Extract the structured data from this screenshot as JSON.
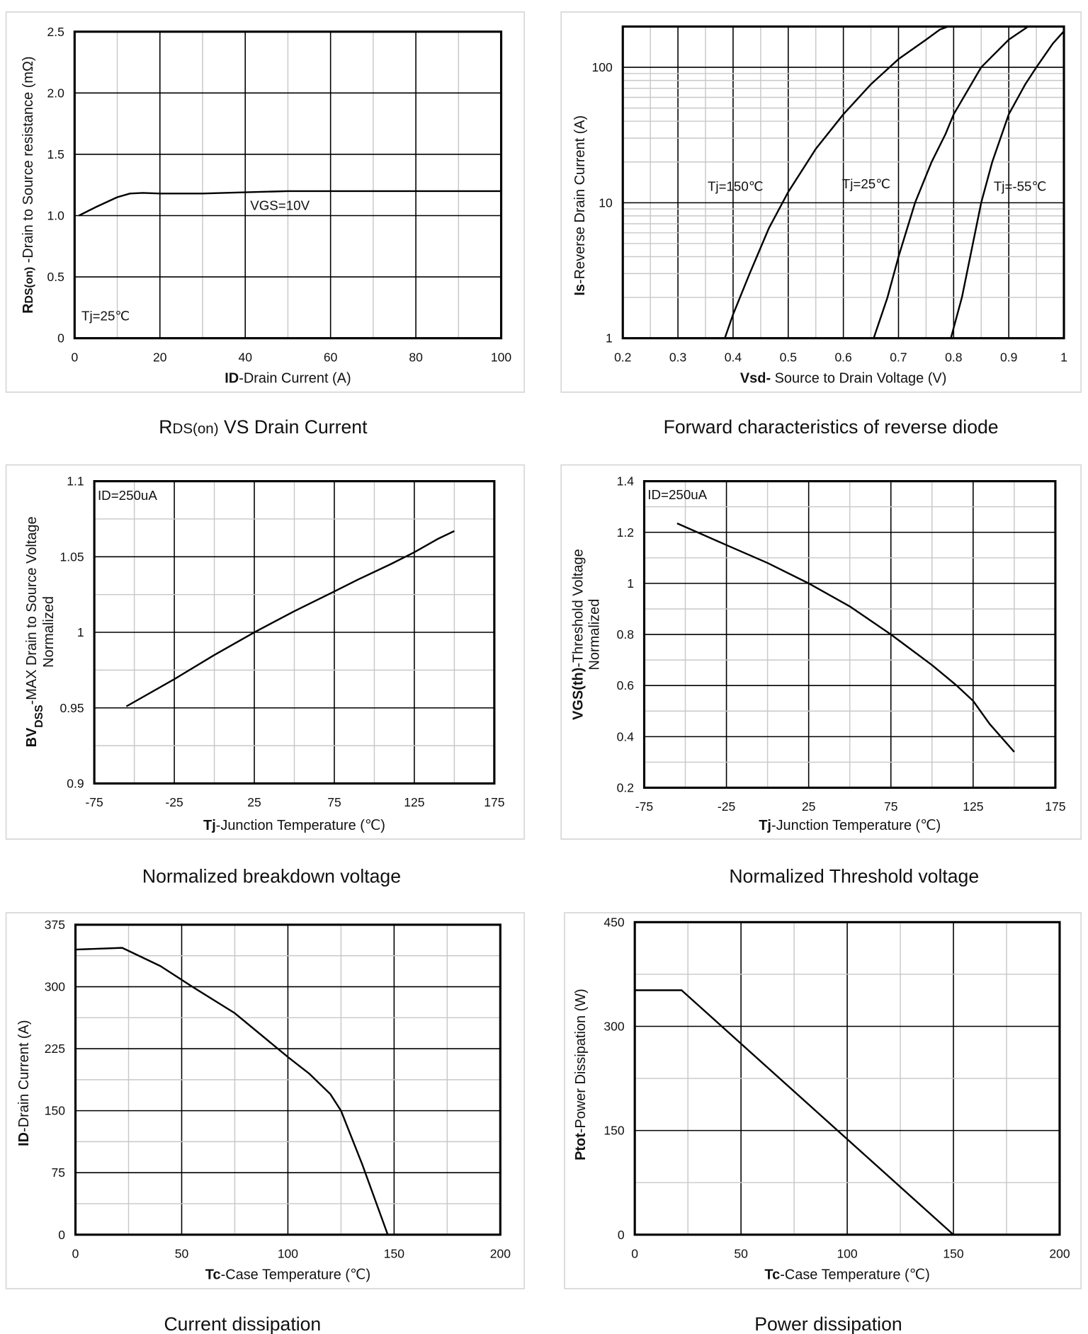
{
  "chart_data": [
    {
      "type": "line",
      "title": [
        {
          "t": "R"
        },
        {
          "t": "DS(on)",
          "s": "small"
        },
        {
          "t": " VS Drain Current"
        }
      ],
      "xlabel": [
        {
          "t": "ID",
          "s": "b"
        },
        {
          "t": "-Drain Current  (A)"
        }
      ],
      "ylabel": [
        [
          {
            "t": "R",
            "s": "b"
          },
          {
            "t": "DS(on)",
            "s": "bsmall"
          },
          {
            "t": " -Drain to Source resistance  (mΩ)"
          }
        ]
      ],
      "xscale": "linear",
      "xlim": [
        0,
        100
      ],
      "xmajor": 20,
      "xminor": 10,
      "yscale": "linear",
      "ylim": [
        0,
        2.5
      ],
      "ymajor": 0.5,
      "yminor": 0.5,
      "xticks": [
        "0",
        "20",
        "40",
        "60",
        "80",
        "100"
      ],
      "yticks": [
        "0",
        "0.5",
        "1.0",
        "1.5",
        "2.0",
        "2.5"
      ],
      "annotations": [
        "VGS=10V",
        "Tj=25℃"
      ],
      "grid": true,
      "series": [
        {
          "name": "VGS=10V",
          "x": [
            1,
            5,
            10,
            13,
            16,
            20,
            30,
            40,
            50,
            60,
            80,
            100
          ],
          "y": [
            1.0,
            1.07,
            1.15,
            1.18,
            1.185,
            1.18,
            1.18,
            1.19,
            1.2,
            1.2,
            1.2,
            1.2
          ]
        }
      ]
    },
    {
      "type": "line",
      "title": [
        {
          "t": "Forward characteristics of reverse diode"
        }
      ],
      "xlabel": [
        {
          "t": "Vsd-",
          "s": "b"
        },
        {
          "t": " Source to Drain Voltage (V)"
        }
      ],
      "ylabel": [
        [
          {
            "t": "Is",
            "s": "b"
          },
          {
            "t": "-Reverse  Drain Current  (A)"
          }
        ]
      ],
      "xscale": "linear",
      "xlim": [
        0.2,
        1.0
      ],
      "xmajor": 0.1,
      "xminor": 0.05,
      "yscale": "log",
      "ylim": [
        1,
        200
      ],
      "xticks": [
        "0.2",
        "0.3",
        "0.4",
        "0.5",
        "0.6",
        "0.7",
        "0.8",
        "0.9",
        "1"
      ],
      "yticks": [
        "1",
        "10",
        "100"
      ],
      "annotations": [
        "Tj=150℃",
        "Tj=25℃",
        "Tj=-55℃"
      ],
      "grid": true,
      "series": [
        {
          "name": "Tj=150℃",
          "x": [
            0.385,
            0.4,
            0.43,
            0.465,
            0.5,
            0.55,
            0.6,
            0.65,
            0.7,
            0.75,
            0.775,
            0.79,
            0.8
          ],
          "y": [
            1,
            1.5,
            3,
            6.5,
            12,
            25,
            45,
            75,
            115,
            160,
            190,
            200,
            200
          ]
        },
        {
          "name": "Tj=25℃",
          "x": [
            0.655,
            0.68,
            0.7,
            0.73,
            0.76,
            0.785,
            0.8,
            0.85,
            0.9,
            0.935
          ],
          "y": [
            1,
            2,
            4,
            10,
            20,
            32,
            45,
            100,
            160,
            200
          ]
        },
        {
          "name": "Tj=-55℃",
          "x": [
            0.795,
            0.815,
            0.83,
            0.85,
            0.87,
            0.9,
            0.93,
            0.95,
            0.98,
            1.0
          ],
          "y": [
            1,
            2,
            4,
            10,
            20,
            45,
            75,
            100,
            150,
            185
          ]
        }
      ]
    },
    {
      "type": "line",
      "title": [
        {
          "t": "Normalized breakdown voltage"
        }
      ],
      "xlabel": [
        {
          "t": "Tj",
          "s": "b"
        },
        {
          "t": "-Junction  Temperature  (℃)"
        }
      ],
      "ylabel": [
        [
          {
            "t": "BV",
            "s": "b"
          },
          {
            "t": "DSS",
            "s": "bsub"
          },
          {
            "t": "-MAX Drain to Source Voltage"
          }
        ],
        [
          {
            "t": "Normalized"
          }
        ]
      ],
      "xscale": "linear",
      "xlim": [
        -75,
        175
      ],
      "xmajor": 50,
      "xminor": 25,
      "yscale": "linear",
      "ylim": [
        0.9,
        1.1
      ],
      "ymajor": 0.05,
      "yminor": 0.025,
      "xticks": [
        "-75",
        "-25",
        "25",
        "75",
        "125",
        "175"
      ],
      "yticks": [
        "0.9",
        "0.95",
        "1",
        "1.05",
        "1.1"
      ],
      "annotations": [
        "ID=250uA"
      ],
      "grid": true,
      "series": [
        {
          "name": "BVDSS",
          "x": [
            -55,
            -25,
            0,
            25,
            50,
            75,
            90,
            110,
            125,
            140,
            150
          ],
          "y": [
            0.951,
            0.969,
            0.985,
            1.0,
            1.014,
            1.027,
            1.035,
            1.045,
            1.053,
            1.062,
            1.067
          ]
        }
      ]
    },
    {
      "type": "line",
      "title": [
        {
          "t": "Normalized Threshold voltage"
        }
      ],
      "xlabel": [
        {
          "t": "Tj",
          "s": "b"
        },
        {
          "t": "-Junction  Temperature  (℃)"
        }
      ],
      "ylabel": [
        [
          {
            "t": "VGS(th)",
            "s": "b"
          },
          {
            "t": "-Threshold  Voltage"
          }
        ],
        [
          {
            "t": "Normalized"
          }
        ]
      ],
      "xscale": "linear",
      "xlim": [
        -75,
        175
      ],
      "xmajor": 50,
      "xminor": 25,
      "yscale": "linear",
      "ylim": [
        0.2,
        1.4
      ],
      "ymajor": 0.2,
      "yminor": 0.1,
      "xticks": [
        "-75",
        "-25",
        "25",
        "75",
        "125",
        "175"
      ],
      "yticks": [
        "0.2",
        "0.4",
        "0.6",
        "0.8",
        "1",
        "1.2",
        "1.4"
      ],
      "annotations": [
        "ID=250uA"
      ],
      "grid": true,
      "series": [
        {
          "name": "VGS(th)",
          "x": [
            -55,
            -25,
            0,
            25,
            50,
            75,
            100,
            115,
            125,
            135,
            150
          ],
          "y": [
            1.235,
            1.15,
            1.08,
            1.0,
            0.91,
            0.8,
            0.68,
            0.6,
            0.54,
            0.45,
            0.34
          ]
        }
      ]
    },
    {
      "type": "line",
      "title": [
        {
          "t": "Current dissipation"
        }
      ],
      "xlabel": [
        {
          "t": "Tc",
          "s": "b"
        },
        {
          "t": "-Case Temperature  (℃)"
        }
      ],
      "ylabel": [
        [
          {
            "t": "ID",
            "s": "b"
          },
          {
            "t": "-Drain Current  (A)"
          }
        ]
      ],
      "xscale": "linear",
      "xlim": [
        0,
        200
      ],
      "xmajor": 50,
      "xminor": 25,
      "yscale": "linear",
      "ylim": [
        0,
        375
      ],
      "ymajor": 75,
      "yminor": 37.5,
      "xticks": [
        "0",
        "50",
        "100",
        "150",
        "200"
      ],
      "yticks": [
        "0",
        "75",
        "150",
        "225",
        "300",
        "375"
      ],
      "annotations": [],
      "grid": true,
      "series": [
        {
          "name": "ID",
          "x": [
            0,
            22,
            40,
            55,
            75,
            100,
            110,
            120,
            125,
            135,
            147
          ],
          "y": [
            345,
            347,
            325,
            300,
            268,
            215,
            195,
            170,
            150,
            85,
            0
          ]
        }
      ]
    },
    {
      "type": "line",
      "title": [
        {
          "t": "Power dissipation"
        }
      ],
      "xlabel": [
        {
          "t": "Tc",
          "s": "b"
        },
        {
          "t": "-Case Temperature  (℃)"
        }
      ],
      "ylabel": [
        [
          {
            "t": "Ptot",
            "s": "b"
          },
          {
            "t": "-Power Dissipation  (W)"
          }
        ]
      ],
      "xscale": "linear",
      "xlim": [
        0,
        200
      ],
      "xmajor": 50,
      "xminor": 25,
      "yscale": "linear",
      "ylim": [
        0,
        450
      ],
      "ymajor": 150,
      "yminor": 75,
      "xticks": [
        "0",
        "50",
        "100",
        "150",
        "200"
      ],
      "yticks": [
        "0",
        "150",
        "300",
        "450"
      ],
      "annotations": [],
      "grid": true,
      "series": [
        {
          "name": "Ptot",
          "x": [
            0,
            22,
            150
          ],
          "y": [
            352,
            352,
            0
          ]
        }
      ]
    }
  ]
}
